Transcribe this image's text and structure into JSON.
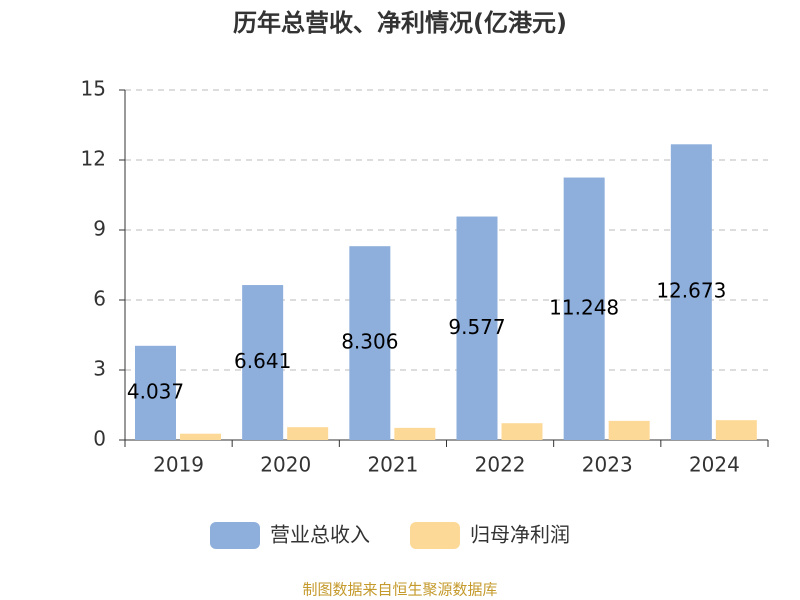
{
  "chart_data": {
    "type": "bar",
    "title": "历年总营收、净利情况(亿港元)",
    "categories": [
      "2019",
      "2020",
      "2021",
      "2022",
      "2023",
      "2024"
    ],
    "series": [
      {
        "name": "营业总收入",
        "color": "#8eaedb",
        "values": [
          4.037,
          6.641,
          8.306,
          9.577,
          11.248,
          12.673
        ],
        "show_labels": true
      },
      {
        "name": "归母净利润",
        "color": "#fdd998",
        "values": [
          0.27,
          0.55,
          0.52,
          0.72,
          0.82,
          0.85
        ],
        "show_labels": false
      }
    ],
    "ylim": [
      0,
      15
    ],
    "yticks": [
      0,
      3,
      6,
      9,
      12,
      15
    ],
    "grid": true,
    "legend": "bottom",
    "source": "制图数据来自恒生聚源数据库"
  }
}
